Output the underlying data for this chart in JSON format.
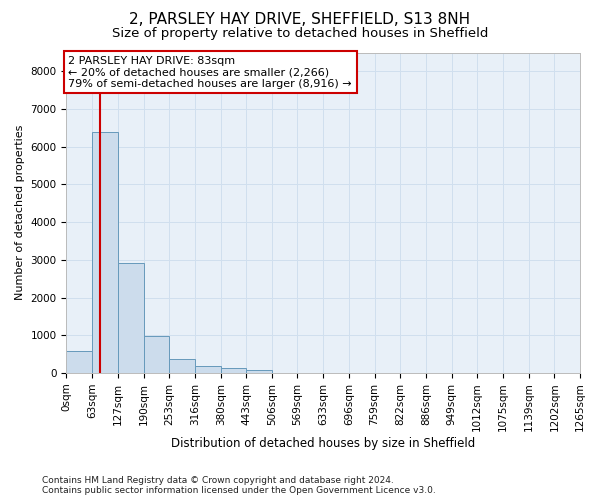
{
  "title1": "2, PARSLEY HAY DRIVE, SHEFFIELD, S13 8NH",
  "title2": "Size of property relative to detached houses in Sheffield",
  "xlabel": "Distribution of detached houses by size in Sheffield",
  "ylabel": "Number of detached properties",
  "bar_color": "#ccdcec",
  "bar_edge_color": "#6699bb",
  "grid_color": "#d0dfee",
  "bg_color": "#e8f0f8",
  "property_line_x": 83,
  "property_line_color": "#cc0000",
  "annotation_text": "2 PARSLEY HAY DRIVE: 83sqm\n← 20% of detached houses are smaller (2,266)\n79% of semi-detached houses are larger (8,916) →",
  "annotation_box_color": "#cc0000",
  "bin_edges": [
    0,
    63,
    127,
    190,
    253,
    316,
    380,
    443,
    506,
    569,
    633,
    696,
    759,
    822,
    886,
    949,
    1012,
    1075,
    1139,
    1202,
    1265
  ],
  "bar_heights": [
    580,
    6400,
    2920,
    980,
    360,
    175,
    120,
    75,
    0,
    0,
    0,
    0,
    0,
    0,
    0,
    0,
    0,
    0,
    0,
    0
  ],
  "ylim": [
    0,
    8500
  ],
  "yticks": [
    0,
    1000,
    2000,
    3000,
    4000,
    5000,
    6000,
    7000,
    8000
  ],
  "footer_text": "Contains HM Land Registry data © Crown copyright and database right 2024.\nContains public sector information licensed under the Open Government Licence v3.0.",
  "title1_fontsize": 11,
  "title2_fontsize": 9.5,
  "xlabel_fontsize": 8.5,
  "ylabel_fontsize": 8,
  "tick_fontsize": 7.5,
  "footer_fontsize": 6.5,
  "annotation_fontsize": 8
}
